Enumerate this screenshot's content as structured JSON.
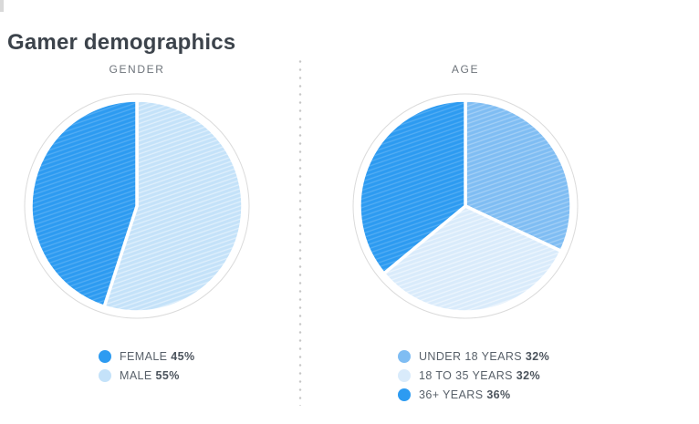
{
  "page": {
    "title": "Gamer demographics"
  },
  "chart_data": [
    {
      "type": "pie",
      "title": "GENDER",
      "legend_position": "bottom",
      "grid": false,
      "slices": [
        {
          "label": "FEMALE",
          "value_pct": 45,
          "value_label": "45%",
          "color": "#2D9BF1",
          "hatch_color": "rgba(255,255,255,0.18)"
        },
        {
          "label": "MALE",
          "value_pct": 55,
          "value_label": "55%",
          "color": "#C4E2F9",
          "hatch_color": "rgba(255,255,255,0.45)"
        }
      ],
      "clockwise_order_from_top": [
        1,
        0
      ]
    },
    {
      "type": "pie",
      "title": "AGE",
      "legend_position": "bottom",
      "grid": false,
      "slices": [
        {
          "label": "UNDER 18 YEARS",
          "value_pct": 32,
          "value_label": "32%",
          "color": "#7FBDF3",
          "hatch_color": "rgba(255,255,255,0.28)"
        },
        {
          "label": "18 TO 35 YEARS",
          "value_pct": 32,
          "value_label": "32%",
          "color": "#D9EBFB",
          "hatch_color": "rgba(255,255,255,0.50)"
        },
        {
          "label": "36+ YEARS",
          "value_pct": 36,
          "value_label": "36%",
          "color": "#2D9BF1",
          "hatch_color": "rgba(255,255,255,0.18)"
        }
      ],
      "clockwise_order_from_top": [
        0,
        1,
        2
      ]
    }
  ],
  "style": {
    "pie_ring_fill": "#ffffff",
    "pie_ring_stroke": "#DBDBDB",
    "slice_gap_stroke": "#ffffff"
  }
}
